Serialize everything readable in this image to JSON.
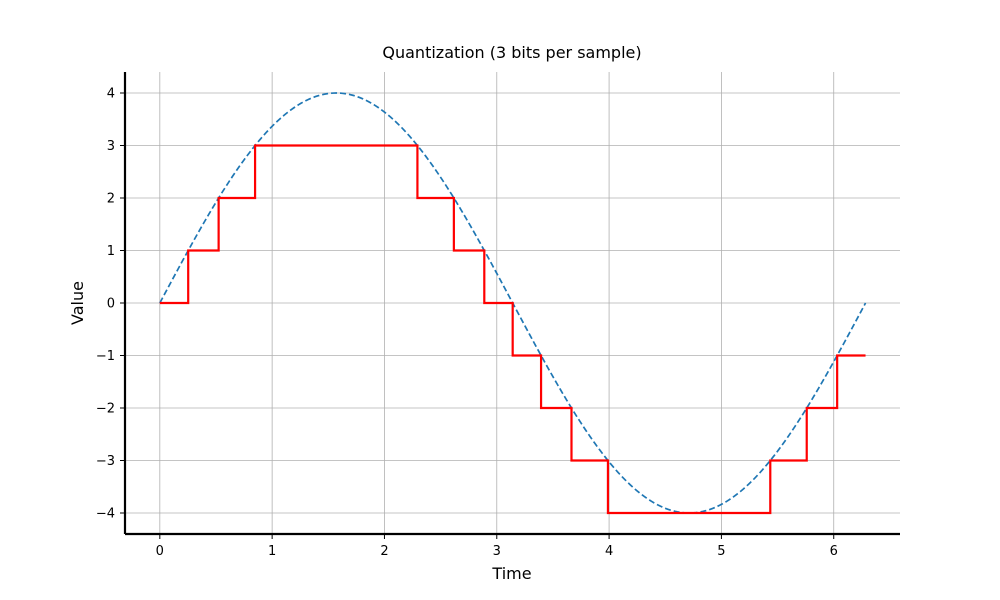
{
  "chart_data": {
    "type": "line",
    "title": "Quantization (3 bits per sample)",
    "xlabel": "Time",
    "ylabel": "Value",
    "xlim": [
      -0.31,
      6.59
    ],
    "ylim": [
      -4.4,
      4.4
    ],
    "xticks": [
      0,
      1,
      2,
      3,
      4,
      5,
      6
    ],
    "yticks": [
      4,
      3,
      2,
      1,
      0,
      -1,
      -2,
      -3,
      -4
    ],
    "ytick_labels": [
      "4",
      "3",
      "2",
      "1",
      "0",
      "−1",
      "−2",
      "−3",
      "−4"
    ],
    "grid": true,
    "colors": {
      "original": "#1f77b4",
      "quantized": "#ff0000",
      "grid": "#b0b0b0",
      "axis": "#000000"
    },
    "series": [
      {
        "key": "original",
        "style": "dashed",
        "function": "4*sin(t)",
        "x_range": [
          0,
          6.2832
        ],
        "x": [
          0,
          0.2527,
          0.5236,
          0.8481,
          1.0,
          1.5708,
          2.0,
          2.2935,
          2.618,
          2.8889,
          3.1416,
          3.3943,
          3.6652,
          4.0,
          4.7124,
          5.0,
          5.4351,
          5.7596,
          6.0305,
          6.2832
        ],
        "y": [
          0,
          1.0,
          2.0,
          3.0,
          3.366,
          4.0,
          3.637,
          2.999,
          2.0,
          0.998,
          0,
          -1.0,
          -2.0,
          -3.027,
          -4.0,
          -3.836,
          -3.0,
          -2.0,
          -1.0,
          0
        ]
      },
      {
        "key": "quantized",
        "style": "step",
        "x": [
          0,
          0.2527,
          0.5236,
          0.8481,
          2.2935,
          2.618,
          2.8889,
          3.1416,
          3.3943,
          3.6652,
          3.9897,
          5.4351,
          5.7596,
          6.0305,
          6.2832
        ],
        "y": [
          0,
          1,
          2,
          3,
          2,
          1,
          0,
          -1,
          -2,
          -3,
          -4,
          -3,
          -2,
          -1,
          -1
        ]
      }
    ]
  }
}
